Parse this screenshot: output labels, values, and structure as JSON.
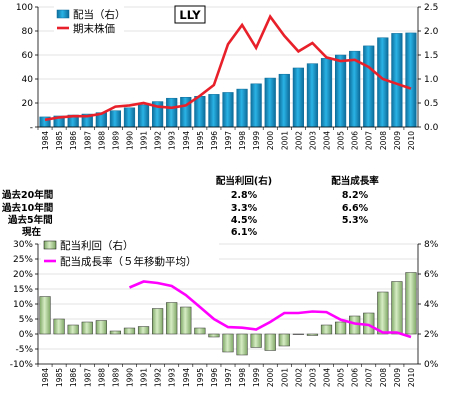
{
  "chart_data": [
    {
      "type": "bar",
      "ticker": "LLY",
      "categories": [
        "1984",
        "1985",
        "1986",
        "1987",
        "1988",
        "1989",
        "1990",
        "1991",
        "1992",
        "1993",
        "1994",
        "1995",
        "1996",
        "1997",
        "1998",
        "1999",
        "2000",
        "2001",
        "2002",
        "2003",
        "2004",
        "2005",
        "2006",
        "2007",
        "2008",
        "2009",
        "2010"
      ],
      "y_left": {
        "ylim": [
          0,
          100
        ],
        "ticks": [
          "-",
          "20",
          "40",
          "60",
          "80",
          "100"
        ],
        "tick_values": [
          0,
          20,
          40,
          60,
          80,
          100
        ]
      },
      "y_right": {
        "ylim": [
          0,
          2.5
        ],
        "ticks": [
          "0.0",
          "0.5",
          "1.0",
          "1.5",
          "2.0",
          "2.5"
        ],
        "tick_values": [
          0,
          0.5,
          1.0,
          1.5,
          2.0,
          2.5
        ]
      },
      "series": [
        {
          "name": "配当（右）",
          "kind": "bar",
          "axis": "right",
          "color": "#1a9fd0",
          "values": [
            0.21,
            0.23,
            0.25,
            0.27,
            0.3,
            0.34,
            0.4,
            0.46,
            0.53,
            0.6,
            0.62,
            0.64,
            0.68,
            0.72,
            0.79,
            0.9,
            1.02,
            1.1,
            1.23,
            1.32,
            1.43,
            1.5,
            1.58,
            1.69,
            1.86,
            1.95,
            1.96
          ]
        },
        {
          "name": "期末株価",
          "kind": "line",
          "axis": "left",
          "color": "#e8202a",
          "values": [
            6,
            8,
            9,
            9,
            11,
            17,
            18,
            20,
            17,
            16,
            18,
            26,
            35,
            69,
            85,
            66,
            92,
            76,
            63,
            70,
            58,
            55,
            56,
            50,
            40,
            36,
            32
          ]
        }
      ]
    },
    {
      "type": "table",
      "columns": [
        "",
        "配当利回(右)",
        "配当成長率"
      ],
      "rows": [
        [
          "過去20年間",
          "2.8%",
          "8.2%"
        ],
        [
          "過去10年間",
          "3.3%",
          "6.6%"
        ],
        [
          "過去5年間",
          "4.5%",
          "5.3%"
        ],
        [
          "現在",
          "6.1%",
          ""
        ]
      ]
    },
    {
      "type": "bar",
      "categories": [
        "1984",
        "1985",
        "1986",
        "1987",
        "1988",
        "1989",
        "1990",
        "1991",
        "1992",
        "1993",
        "1994",
        "1995",
        "1996",
        "1997",
        "1998",
        "1999",
        "2000",
        "2001",
        "2002",
        "2003",
        "2004",
        "2005",
        "2006",
        "2007",
        "2008",
        "2009",
        "2010"
      ],
      "y_left": {
        "ylim": [
          -10,
          30
        ],
        "ticks": [
          "-10%",
          "-5%",
          "0%",
          "5%",
          "10%",
          "15%",
          "20%",
          "25%",
          "30%"
        ],
        "tick_values": [
          -10,
          -5,
          0,
          5,
          10,
          15,
          20,
          25,
          30
        ]
      },
      "y_right": {
        "ylim": [
          0,
          8
        ],
        "ticks": [
          "0%",
          "2%",
          "4%",
          "6%",
          "8%"
        ],
        "tick_values": [
          0,
          2,
          4,
          6,
          8
        ]
      },
      "series": [
        {
          "name": "配当利回（右）",
          "kind": "bar",
          "axis": "right",
          "color": "#b8d6a0",
          "values": [
            4.5,
            3.0,
            2.6,
            2.8,
            2.9,
            2.2,
            2.4,
            2.5,
            3.7,
            4.1,
            3.8,
            2.4,
            1.8,
            0.8,
            0.6,
            1.1,
            0.9,
            1.2,
            2.0,
            1.9,
            2.6,
            2.8,
            3.2,
            3.4,
            4.8,
            5.5,
            6.1
          ]
        },
        {
          "name": "配当成長率（５年移動平均）",
          "kind": "line",
          "axis": "left",
          "color": "#ff00ff",
          "values": [
            null,
            null,
            null,
            null,
            null,
            null,
            15.5,
            17.5,
            17,
            16,
            13,
            9,
            5,
            2.3,
            2.1,
            1.5,
            4,
            7,
            7,
            7.5,
            7.3,
            4.8,
            3.5,
            3,
            0.5,
            0.5,
            -1
          ]
        }
      ]
    }
  ]
}
